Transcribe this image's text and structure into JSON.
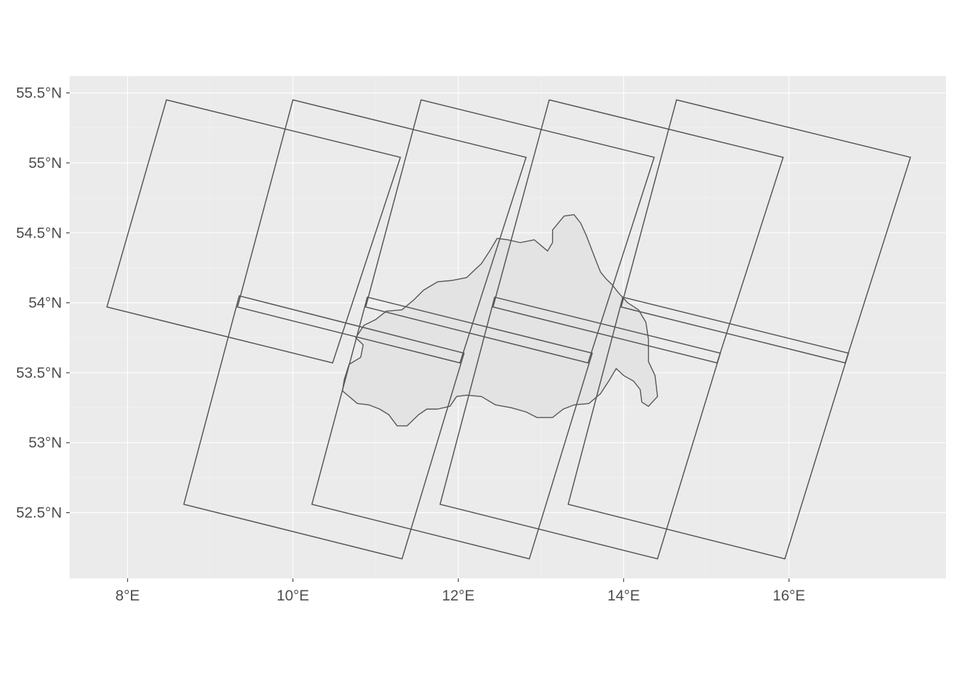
{
  "chart_data": {
    "type": "map",
    "x_axis": {
      "label": "",
      "range": [
        7.3,
        17.9
      ],
      "ticks": [
        8,
        10,
        12,
        14,
        16
      ],
      "tick_labels": [
        "8°E",
        "10°E",
        "12°E",
        "14°E",
        "16°E"
      ]
    },
    "y_axis": {
      "label": "",
      "range": [
        52.03,
        55.62
      ],
      "ticks": [
        52.5,
        53,
        53.5,
        54,
        54.5,
        55,
        55.5
      ],
      "tick_labels": [
        "52.5°N",
        "53°N",
        "53.5°N",
        "54°N",
        "54.5°N",
        "55°N",
        "55.5°N"
      ]
    },
    "grid": true,
    "panel_background": "#ebebeb",
    "outline_color": "#555555",
    "region_fill": "#e3e3e3",
    "tiles": [
      {
        "corners": [
          [
            8.47,
            55.45
          ],
          [
            11.3,
            55.04
          ],
          [
            10.48,
            53.57
          ],
          [
            7.75,
            53.97
          ]
        ]
      },
      {
        "corners": [
          [
            10.0,
            55.45
          ],
          [
            12.82,
            55.04
          ],
          [
            12.02,
            53.57
          ],
          [
            9.33,
            53.97
          ]
        ]
      },
      {
        "corners": [
          [
            11.55,
            55.45
          ],
          [
            14.37,
            55.04
          ],
          [
            13.57,
            53.57
          ],
          [
            10.88,
            53.97
          ]
        ]
      },
      {
        "corners": [
          [
            13.1,
            55.45
          ],
          [
            15.93,
            55.04
          ],
          [
            15.13,
            53.57
          ],
          [
            12.42,
            53.97
          ]
        ]
      },
      {
        "corners": [
          [
            14.64,
            55.45
          ],
          [
            17.47,
            55.04
          ],
          [
            16.68,
            53.57
          ],
          [
            13.97,
            53.97
          ]
        ]
      },
      {
        "corners": [
          [
            9.35,
            54.05
          ],
          [
            12.07,
            53.64
          ],
          [
            11.32,
            52.17
          ],
          [
            8.68,
            52.56
          ]
        ]
      },
      {
        "corners": [
          [
            10.9,
            54.04
          ],
          [
            13.62,
            53.64
          ],
          [
            12.86,
            52.17
          ],
          [
            10.23,
            52.56
          ]
        ]
      },
      {
        "corners": [
          [
            12.44,
            54.04
          ],
          [
            15.17,
            53.64
          ],
          [
            14.41,
            52.17
          ],
          [
            11.78,
            52.56
          ]
        ]
      },
      {
        "corners": [
          [
            13.99,
            54.04
          ],
          [
            16.72,
            53.64
          ],
          [
            15.95,
            52.17
          ],
          [
            13.33,
            52.56
          ]
        ]
      }
    ],
    "region_outline": [
      [
        10.6,
        53.37
      ],
      [
        10.78,
        53.28
      ],
      [
        10.92,
        53.27
      ],
      [
        11.05,
        53.24
      ],
      [
        11.16,
        53.2
      ],
      [
        11.26,
        53.12
      ],
      [
        11.38,
        53.12
      ],
      [
        11.52,
        53.2
      ],
      [
        11.62,
        53.24
      ],
      [
        11.75,
        53.24
      ],
      [
        11.9,
        53.26
      ],
      [
        11.98,
        53.33
      ],
      [
        12.1,
        53.34
      ],
      [
        12.28,
        53.33
      ],
      [
        12.45,
        53.27
      ],
      [
        12.64,
        53.25
      ],
      [
        12.82,
        53.22
      ],
      [
        12.95,
        53.18
      ],
      [
        13.14,
        53.18
      ],
      [
        13.27,
        53.24
      ],
      [
        13.4,
        53.27
      ],
      [
        13.58,
        53.28
      ],
      [
        13.72,
        53.35
      ],
      [
        13.83,
        53.45
      ],
      [
        13.91,
        53.53
      ],
      [
        14.0,
        53.48
      ],
      [
        14.12,
        53.44
      ],
      [
        14.2,
        53.38
      ],
      [
        14.22,
        53.29
      ],
      [
        14.3,
        53.26
      ],
      [
        14.41,
        53.33
      ],
      [
        14.38,
        53.48
      ],
      [
        14.3,
        53.58
      ],
      [
        14.3,
        53.74
      ],
      [
        14.27,
        53.86
      ],
      [
        14.18,
        53.95
      ],
      [
        14.05,
        54.0
      ],
      [
        13.94,
        54.07
      ],
      [
        13.86,
        54.13
      ],
      [
        13.79,
        54.17
      ],
      [
        13.72,
        54.22
      ],
      [
        13.68,
        54.28
      ],
      [
        13.62,
        54.37
      ],
      [
        13.55,
        54.48
      ],
      [
        13.48,
        54.57
      ],
      [
        13.4,
        54.63
      ],
      [
        13.28,
        54.62
      ],
      [
        13.14,
        54.52
      ],
      [
        13.14,
        54.43
      ],
      [
        13.08,
        54.37
      ],
      [
        12.92,
        54.45
      ],
      [
        12.75,
        54.43
      ],
      [
        12.6,
        54.45
      ],
      [
        12.47,
        54.46
      ],
      [
        12.38,
        54.37
      ],
      [
        12.28,
        54.28
      ],
      [
        12.1,
        54.18
      ],
      [
        11.93,
        54.16
      ],
      [
        11.75,
        54.15
      ],
      [
        11.58,
        54.09
      ],
      [
        11.46,
        54.02
      ],
      [
        11.32,
        53.95
      ],
      [
        11.13,
        53.94
      ],
      [
        11.0,
        53.88
      ],
      [
        10.86,
        53.84
      ],
      [
        10.76,
        53.75
      ],
      [
        10.85,
        53.7
      ],
      [
        10.82,
        53.61
      ],
      [
        10.68,
        53.56
      ],
      [
        10.62,
        53.45
      ]
    ]
  }
}
